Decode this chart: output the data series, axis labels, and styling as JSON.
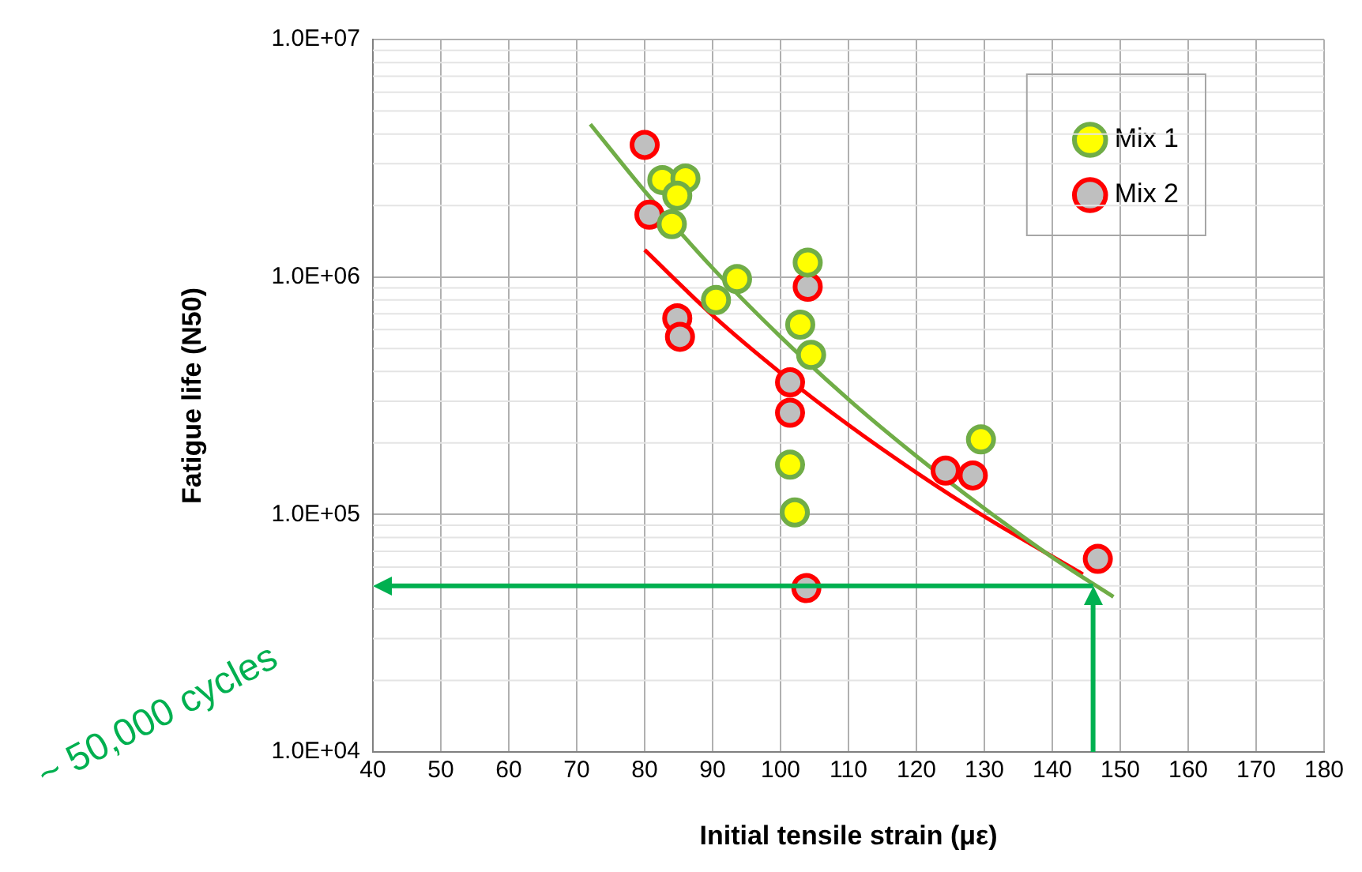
{
  "chart_data": {
    "type": "scatter",
    "xlabel": "Initial tensile strain (με)",
    "ylabel": "Fatigue life (N50)",
    "xlim": [
      40,
      180
    ],
    "xticks": [
      40,
      50,
      60,
      70,
      80,
      90,
      100,
      110,
      120,
      130,
      140,
      150,
      160,
      170,
      180
    ],
    "ylim": [
      10000,
      10000000
    ],
    "yticks": [
      {
        "value": 10000,
        "label": "1.0E+04"
      },
      {
        "value": 100000,
        "label": "1.0E+05"
      },
      {
        "value": 1000000,
        "label": "1.0E+06"
      },
      {
        "value": 10000000,
        "label": "1.0E+07"
      }
    ],
    "log": "y",
    "grid": true,
    "legend": "top right",
    "marker": "circle",
    "series": [
      {
        "name": "Mix 1",
        "color": "#ffff00",
        "x": [
          82.6,
          86.0,
          84.8,
          84.0,
          93.6,
          90.5,
          104.0,
          102.9,
          104.5,
          101.4,
          102.1,
          129.5
        ],
        "values": [
          2560000,
          2600000,
          2200000,
          1670000,
          980000,
          800000,
          1150000,
          630000,
          470000,
          162000,
          102000,
          207000
        ]
      },
      {
        "name": "Mix 2",
        "color": "#bfbfbf",
        "x": [
          80.0,
          80.7,
          84.8,
          85.2,
          104.0,
          101.4,
          101.4,
          103.8,
          124.3,
          128.3,
          146.7
        ],
        "values": [
          3600000,
          1830000,
          670000,
          560000,
          910000,
          360000,
          268000,
          49000,
          153000,
          146000,
          65000
        ]
      },
      {
        "type": "line",
        "marker": "none",
        "color": "#70ad47",
        "x": [
          72,
          80,
          90,
          100,
          110,
          120,
          130,
          140,
          149
        ],
        "values": [
          4400000,
          2300000,
          1090000,
          560000,
          305000,
          176000,
          106000,
          66000,
          45000
        ]
      },
      {
        "type": "line",
        "marker": "none",
        "color": "#ff0000",
        "x": [
          80,
          90,
          100,
          110,
          120,
          130,
          144.5
        ],
        "values": [
          1300000,
          690000,
          395000,
          238000,
          150000,
          98000,
          56000
        ]
      }
    ],
    "ref_lines": [
      {
        "axis": "y",
        "value": 50000,
        "color": "#00b050"
      },
      {
        "axis": "x",
        "value": 146,
        "color": "#00b050"
      }
    ],
    "annotations": [
      "~ 50,000 cycles"
    ]
  }
}
